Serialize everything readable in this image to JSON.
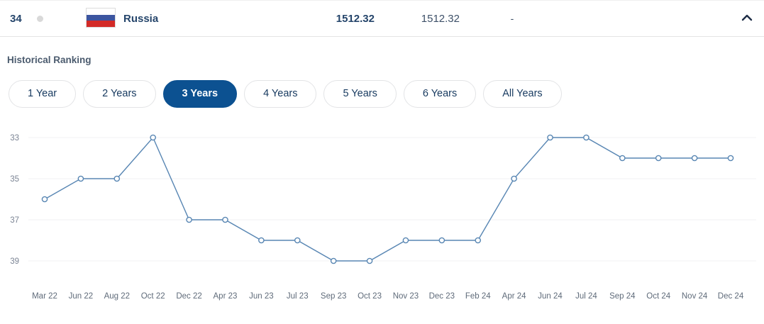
{
  "header_row": {
    "rank": "34",
    "movement": "no-change",
    "country": "Russia",
    "total_points": "1512.32",
    "previous_points": "1512.32",
    "points_change": "-",
    "flag_stripes": [
      "#ffffff",
      "#3c55a0",
      "#d32a27"
    ],
    "expand_icon": "chevron-up"
  },
  "section": {
    "title": "Historical Ranking"
  },
  "filters": [
    {
      "label": "1 Year",
      "selected": false
    },
    {
      "label": "2 Years",
      "selected": false
    },
    {
      "label": "3 Years",
      "selected": true
    },
    {
      "label": "4 Years",
      "selected": false
    },
    {
      "label": "5 Years",
      "selected": false
    },
    {
      "label": "6 Years",
      "selected": false
    },
    {
      "label": "All Years",
      "selected": false
    }
  ],
  "chart_data": {
    "type": "line",
    "title": "Historical Ranking",
    "categories": [
      "Mar 22",
      "Jun 22",
      "Aug 22",
      "Oct 22",
      "Dec 22",
      "Apr 23",
      "Jun 23",
      "Jul 23",
      "Sep 23",
      "Oct 23",
      "Nov 23",
      "Dec 23",
      "Feb 24",
      "Apr 24",
      "Jun 24",
      "Jul 24",
      "Sep 24",
      "Oct 24",
      "Nov 24",
      "Dec 24"
    ],
    "values": [
      36,
      35,
      35,
      33,
      37,
      37,
      38,
      38,
      39,
      39,
      38,
      38,
      38,
      35,
      33,
      33,
      34,
      34,
      34,
      34
    ],
    "xlabel": "",
    "ylabel": "",
    "y_ticks": [
      33,
      35,
      37,
      39
    ],
    "ylim": [
      33,
      39
    ],
    "y_axis_inverted": true,
    "grid": true,
    "legend": "none",
    "line_color": "#5886b3",
    "marker": "open-circle",
    "marker_fill": "#ffffff",
    "grid_color": "#f0f1f3",
    "y_tick_color": "#7b8494",
    "x_tick_color": "#5f6b7a"
  },
  "colors": {
    "accent_selected": "#0c5191",
    "text_navy": "#25456b",
    "divider": "#e4e4e4",
    "movement_dot": "#d9d9d9",
    "chevron": "#1e2d46"
  }
}
